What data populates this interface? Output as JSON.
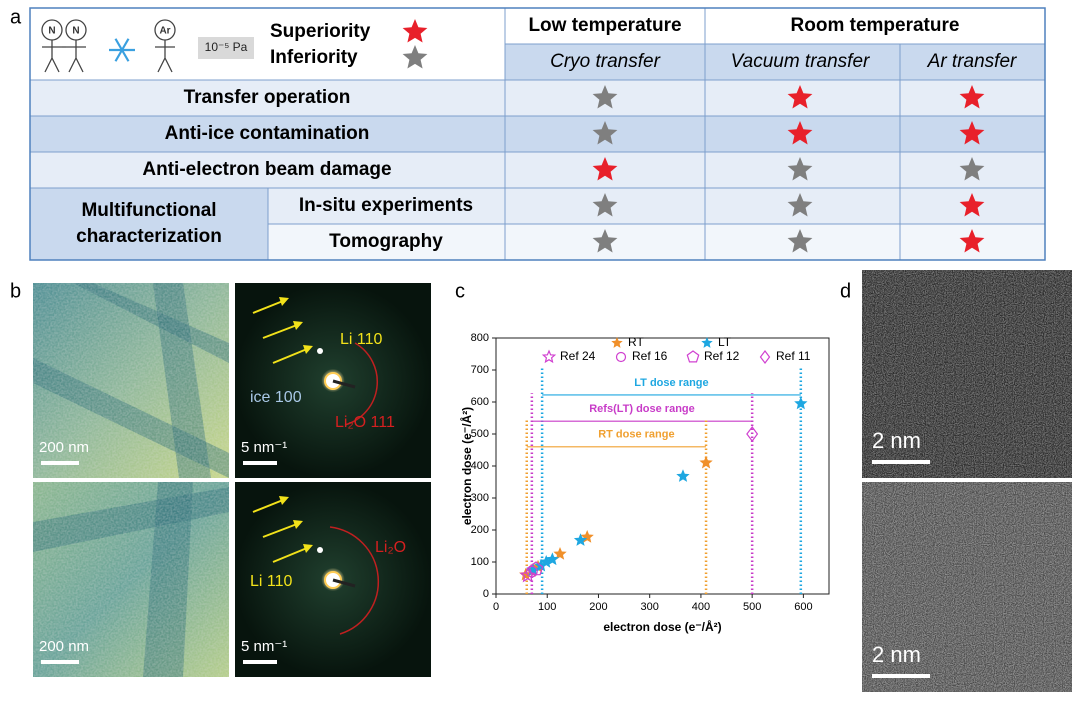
{
  "panel_labels": [
    "a",
    "b",
    "c",
    "d"
  ],
  "table": {
    "icons": {
      "person_left": "N",
      "person_right": "N",
      "person_ar": "Ar",
      "pressure": "10⁻⁵ Pa"
    },
    "legend": [
      {
        "label": "Superiority",
        "color": "#e8202a"
      },
      {
        "label": "Inferiority",
        "color": "#7f7f7f"
      }
    ],
    "groups": [
      "Low temperature",
      "Room temperature"
    ],
    "columns": [
      "Cryo transfer",
      "Vacuum transfer",
      "Ar transfer"
    ],
    "rows": [
      {
        "label": "Transfer operation",
        "ratings": [
          1,
          0,
          0
        ]
      },
      {
        "label": "Anti-ice contamination",
        "ratings": [
          1,
          0,
          0
        ]
      },
      {
        "label": "Anti-electron beam damage",
        "ratings": [
          0,
          1,
          1
        ]
      },
      {
        "label": [
          "Multifunctional",
          "characterization"
        ],
        "subrows": [
          {
            "label": "In-situ experiments",
            "ratings": [
              1,
              1,
              0
            ]
          },
          {
            "label": "Tomography",
            "ratings": [
              1,
              1,
              0
            ]
          }
        ]
      }
    ]
  },
  "panel_b": {
    "images": [
      {
        "scale_bar": "200 nm"
      },
      {
        "scale_bar": "5 nm⁻¹",
        "annotations": [
          "Li 110",
          "ice 100",
          "Li₂O 111"
        ]
      },
      {
        "scale_bar": "200 nm"
      },
      {
        "scale_bar": "5 nm⁻¹",
        "annotations": [
          "Li₂O",
          "Li 110"
        ]
      }
    ]
  },
  "panel_d": {
    "images": [
      {
        "scale_bar": "2 nm"
      },
      {
        "scale_bar": "2 nm"
      }
    ]
  },
  "chart_data": {
    "type": "scatter",
    "x_label": "electron dose (e⁻/Å²)",
    "y_label": "electron dose (e⁻/Å²)",
    "xlim": [
      0,
      650
    ],
    "ylim": [
      0,
      800
    ],
    "xticks": [
      0,
      100,
      200,
      300,
      400,
      500,
      600
    ],
    "yticks": [
      0,
      100,
      200,
      300,
      400,
      500,
      600,
      700,
      800
    ],
    "series": [
      {
        "name": "RT",
        "color": "#f0902a",
        "marker": "star",
        "filled": true,
        "x": [
          58,
          70,
          82,
          125,
          178,
          410
        ],
        "values": [
          60,
          72,
          85,
          125,
          178,
          410
        ]
      },
      {
        "name": "LT",
        "color": "#1ea7e1",
        "marker": "star",
        "filled": true,
        "x": [
          72,
          88,
          98,
          110,
          165,
          365,
          595
        ],
        "values": [
          75,
          88,
          100,
          108,
          168,
          368,
          595
        ]
      },
      {
        "name": "Ref 24",
        "color": "#d040d0",
        "marker": "star",
        "filled": false,
        "x": [
          62
        ],
        "values": [
          58
        ]
      },
      {
        "name": "Ref 16",
        "color": "#d040d0",
        "marker": "circle",
        "filled": false,
        "x": [
          70
        ],
        "values": [
          70
        ]
      },
      {
        "name": "Ref 12",
        "color": "#d040d0",
        "marker": "pentagon",
        "filled": false,
        "x": [
          78
        ],
        "values": [
          78
        ]
      },
      {
        "name": "Ref 11",
        "color": "#d040d0",
        "marker": "diamond",
        "filled": false,
        "x": [
          500
        ],
        "values": [
          500
        ]
      }
    ],
    "ranges": [
      {
        "name": "LT dose range",
        "color": "#1ea7e1",
        "x": [
          90,
          595
        ],
        "y": 622
      },
      {
        "name": "Refs(LT) dose range",
        "color": "#c83cc8",
        "x": [
          70,
          500
        ],
        "y": 540
      },
      {
        "name": "RT dose range",
        "color": "#f0a030",
        "x": [
          60,
          410
        ],
        "y": 460
      }
    ]
  }
}
